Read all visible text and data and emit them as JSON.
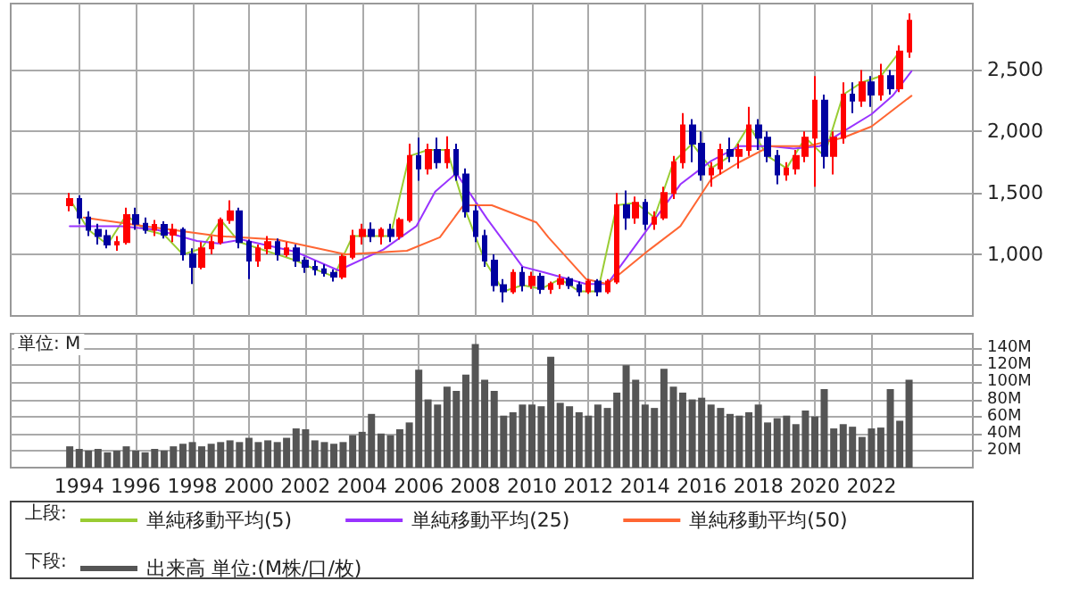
{
  "chart_data": [
    {
      "type": "candlestick",
      "x": [
        "1993-09",
        "1994-01",
        "1994-05",
        "1994-09",
        "1995-01",
        "1995-05",
        "1995-09",
        "1996-01",
        "1996-05",
        "1996-09",
        "1997-01",
        "1997-05",
        "1997-09",
        "1998-01",
        "1998-05",
        "1998-09",
        "1999-01",
        "1999-05",
        "1999-09",
        "2000-01",
        "2000-05",
        "2000-09",
        "2001-01",
        "2001-05",
        "2001-09",
        "2002-01",
        "2002-05",
        "2002-09",
        "2003-01",
        "2003-05",
        "2003-09",
        "2004-01",
        "2004-05",
        "2004-09",
        "2005-01",
        "2005-05",
        "2005-09",
        "2006-01",
        "2006-05",
        "2006-09",
        "2007-01",
        "2007-05",
        "2007-09",
        "2008-01",
        "2008-05",
        "2008-09",
        "2009-01",
        "2009-05",
        "2009-09",
        "2010-01",
        "2010-05",
        "2010-09",
        "2011-01",
        "2011-05",
        "2011-09",
        "2012-01",
        "2012-05",
        "2012-09",
        "2013-01",
        "2013-05",
        "2013-09",
        "2014-01",
        "2014-05",
        "2014-09",
        "2015-01",
        "2015-05",
        "2015-09",
        "2016-01",
        "2016-05",
        "2016-09",
        "2017-01",
        "2017-05",
        "2017-09",
        "2018-01",
        "2018-05",
        "2018-09",
        "2019-01",
        "2019-05",
        "2019-09",
        "2020-01",
        "2020-05",
        "2020-09",
        "2021-01",
        "2021-05",
        "2021-09",
        "2022-01",
        "2022-05",
        "2022-09",
        "2023-01",
        "2023-05"
      ],
      "ohlc": [
        [
          1400,
          1500,
          1350,
          1450
        ],
        [
          1450,
          1480,
          1250,
          1300
        ],
        [
          1300,
          1350,
          1150,
          1200
        ],
        [
          1200,
          1250,
          1080,
          1150
        ],
        [
          1150,
          1200,
          1050,
          1080
        ],
        [
          1080,
          1150,
          1030,
          1100
        ],
        [
          1100,
          1380,
          1080,
          1320
        ],
        [
          1320,
          1380,
          1200,
          1250
        ],
        [
          1250,
          1300,
          1170,
          1200
        ],
        [
          1200,
          1280,
          1150,
          1240
        ],
        [
          1240,
          1270,
          1130,
          1160
        ],
        [
          1160,
          1250,
          1100,
          1200
        ],
        [
          1200,
          1220,
          950,
          1000
        ],
        [
          1000,
          1050,
          760,
          900
        ],
        [
          900,
          1100,
          880,
          1050
        ],
        [
          1050,
          1150,
          1000,
          1100
        ],
        [
          1100,
          1300,
          1080,
          1280
        ],
        [
          1280,
          1440,
          1250,
          1350
        ],
        [
          1350,
          1380,
          1050,
          1100
        ],
        [
          1100,
          1120,
          800,
          950
        ],
        [
          950,
          1080,
          900,
          1050
        ],
        [
          1050,
          1150,
          1000,
          1100
        ],
        [
          1100,
          1130,
          950,
          1000
        ],
        [
          1000,
          1100,
          980,
          1050
        ],
        [
          1050,
          1080,
          900,
          950
        ],
        [
          950,
          980,
          850,
          900
        ],
        [
          900,
          950,
          830,
          880
        ],
        [
          880,
          920,
          820,
          850
        ],
        [
          850,
          880,
          780,
          820
        ],
        [
          820,
          1000,
          800,
          980
        ],
        [
          980,
          1200,
          960,
          1150
        ],
        [
          1150,
          1250,
          1080,
          1200
        ],
        [
          1200,
          1260,
          1100,
          1150
        ],
        [
          1150,
          1220,
          1080,
          1200
        ],
        [
          1200,
          1250,
          1100,
          1150
        ],
        [
          1150,
          1300,
          1120,
          1280
        ],
        [
          1280,
          1900,
          1260,
          1800
        ],
        [
          1800,
          1950,
          1600,
          1700
        ],
        [
          1700,
          1900,
          1650,
          1850
        ],
        [
          1850,
          1950,
          1700,
          1750
        ],
        [
          1750,
          1960,
          1700,
          1850
        ],
        [
          1850,
          1900,
          1600,
          1650
        ],
        [
          1650,
          1700,
          1300,
          1350
        ],
        [
          1350,
          1400,
          1100,
          1150
        ],
        [
          1150,
          1200,
          900,
          950
        ],
        [
          950,
          1000,
          700,
          750
        ],
        [
          750,
          800,
          610,
          700
        ],
        [
          700,
          880,
          680,
          850
        ],
        [
          850,
          900,
          700,
          750
        ],
        [
          750,
          860,
          720,
          820
        ],
        [
          820,
          850,
          680,
          720
        ],
        [
          720,
          780,
          680,
          760
        ],
        [
          760,
          840,
          720,
          800
        ],
        [
          800,
          820,
          720,
          750
        ],
        [
          750,
          780,
          660,
          700
        ],
        [
          700,
          800,
          680,
          780
        ],
        [
          780,
          800,
          660,
          700
        ],
        [
          700,
          800,
          680,
          780
        ],
        [
          780,
          1500,
          760,
          1400
        ],
        [
          1400,
          1520,
          1200,
          1300
        ],
        [
          1300,
          1470,
          1250,
          1420
        ],
        [
          1420,
          1450,
          1200,
          1250
        ],
        [
          1250,
          1350,
          1200,
          1300
        ],
        [
          1300,
          1550,
          1280,
          1500
        ],
        [
          1500,
          1800,
          1450,
          1750
        ],
        [
          1750,
          2150,
          1700,
          2050
        ],
        [
          2050,
          2100,
          1750,
          1900
        ],
        [
          1900,
          2000,
          1600,
          1650
        ],
        [
          1650,
          1750,
          1550,
          1700
        ],
        [
          1700,
          1900,
          1650,
          1850
        ],
        [
          1850,
          1950,
          1750,
          1800
        ],
        [
          1800,
          1900,
          1700,
          1850
        ],
        [
          1850,
          2200,
          1800,
          2050
        ],
        [
          2050,
          2100,
          1850,
          1950
        ],
        [
          1950,
          2000,
          1750,
          1800
        ],
        [
          1800,
          1850,
          1570,
          1650
        ],
        [
          1650,
          1750,
          1600,
          1700
        ],
        [
          1700,
          1850,
          1650,
          1800
        ],
        [
          1800,
          2000,
          1750,
          1950
        ],
        [
          1950,
          2450,
          1550,
          2250
        ],
        [
          2250,
          2300,
          1700,
          1800
        ],
        [
          1800,
          2000,
          1650,
          1950
        ],
        [
          1950,
          2400,
          1900,
          2300
        ],
        [
          2300,
          2400,
          2150,
          2250
        ],
        [
          2250,
          2500,
          2200,
          2400
        ],
        [
          2400,
          2450,
          2200,
          2300
        ],
        [
          2300,
          2550,
          2250,
          2450
        ],
        [
          2450,
          2500,
          2300,
          2350
        ],
        [
          2350,
          2700,
          2320,
          2650
        ],
        [
          2650,
          2960,
          2600,
          2900
        ]
      ],
      "colors": [
        "#ff0000",
        "#0000a0",
        "#0000a0",
        "#0000a0",
        "#0000a0",
        "#ff0000",
        "#ff0000",
        "#0000a0",
        "#0000a0",
        "#ff0000",
        "#0000a0",
        "#ff0000",
        "#0000a0",
        "#0000a0",
        "#ff0000",
        "#ff0000",
        "#ff0000",
        "#ff0000",
        "#0000a0",
        "#0000a0",
        "#ff0000",
        "#ff0000",
        "#0000a0",
        "#ff0000",
        "#0000a0",
        "#0000a0",
        "#0000a0",
        "#0000a0",
        "#0000a0",
        "#ff0000",
        "#ff0000",
        "#ff0000",
        "#0000a0",
        "#ff0000",
        "#0000a0",
        "#ff0000",
        "#ff0000",
        "#0000a0",
        "#ff0000",
        "#0000a0",
        "#ff0000",
        "#0000a0",
        "#0000a0",
        "#0000a0",
        "#0000a0",
        "#0000a0",
        "#0000a0",
        "#ff0000",
        "#0000a0",
        "#ff0000",
        "#0000a0",
        "#ff0000",
        "#ff0000",
        "#0000a0",
        "#0000a0",
        "#ff0000",
        "#0000a0",
        "#ff0000",
        "#ff0000",
        "#0000a0",
        "#ff0000",
        "#0000a0",
        "#ff0000",
        "#ff0000",
        "#ff0000",
        "#ff0000",
        "#0000a0",
        "#0000a0",
        "#ff0000",
        "#ff0000",
        "#0000a0",
        "#ff0000",
        "#ff0000",
        "#0000a0",
        "#0000a0",
        "#0000a0",
        "#ff0000",
        "#ff0000",
        "#ff0000",
        "#ff0000",
        "#0000a0",
        "#ff0000",
        "#ff0000",
        "#0000a0",
        "#ff0000",
        "#0000a0",
        "#ff0000",
        "#0000a0",
        "#ff0000",
        "#ff0000"
      ],
      "series": [
        {
          "type": "line",
          "name": "単純移動平均(5)",
          "color": "#99cc33",
          "x": [
            "1993-09",
            "1994-05",
            "1995-01",
            "1995-09",
            "1996-05",
            "1997-01",
            "1997-09",
            "1998-05",
            "1999-01",
            "1999-09",
            "2000-05",
            "2001-01",
            "2001-09",
            "2002-05",
            "2003-01",
            "2003-09",
            "2004-05",
            "2005-01",
            "2005-09",
            "2006-05",
            "2007-01",
            "2007-09",
            "2008-05",
            "2009-01",
            "2009-09",
            "2010-05",
            "2011-01",
            "2011-09",
            "2012-05",
            "2013-01",
            "2013-09",
            "2014-05",
            "2015-01",
            "2015-09",
            "2016-05",
            "2017-01",
            "2017-09",
            "2018-05",
            "2019-01",
            "2019-09",
            "2020-05",
            "2021-01",
            "2021-09",
            "2022-05",
            "2023-01"
          ],
          "values": [
            1450,
            1200,
            1080,
            1320,
            1200,
            1160,
            1000,
            1050,
            1280,
            1100,
            1050,
            1000,
            950,
            880,
            820,
            1150,
            1150,
            1150,
            1800,
            1850,
            1850,
            1350,
            950,
            700,
            750,
            720,
            800,
            700,
            700,
            1400,
            1420,
            1300,
            1750,
            1900,
            1700,
            1800,
            2050,
            1800,
            1700,
            1950,
            1800,
            2300,
            2400,
            2450,
            2650
          ]
        },
        {
          "type": "line",
          "name": "単純移動平均(25)",
          "color": "#9933ff",
          "x": [
            "1993-09",
            "1995-07",
            "1996-10",
            "1998-03",
            "1998-12",
            "1999-10",
            "2001-09",
            "2003-03",
            "2004-10",
            "2005-12",
            "2006-08",
            "2007-05",
            "2008-06",
            "2009-09",
            "2010-07",
            "2011-12",
            "2012-09",
            "2014-03",
            "2015-04",
            "2016-05",
            "2017-05",
            "2018-06",
            "2019-04",
            "2020-03",
            "2021-01",
            "2022-01",
            "2022-10",
            "2023-06"
          ],
          "values": [
            1230,
            1230,
            1200,
            1110,
            1090,
            1120,
            1020,
            870,
            1040,
            1230,
            1510,
            1660,
            1290,
            900,
            850,
            760,
            760,
            1230,
            1570,
            1760,
            1880,
            1880,
            1860,
            1880,
            2000,
            2140,
            2290,
            2490
          ]
        },
        {
          "type": "line",
          "name": "単純移動平均(50)",
          "color": "#ff6633",
          "x": [
            "1994-03",
            "1996-05",
            "1998-12",
            "2001-01",
            "2003-06",
            "2005-08",
            "2006-10",
            "2007-08",
            "2008-08",
            "2010-03",
            "2010-08",
            "2011-12",
            "2012-09",
            "2014-03",
            "2015-04",
            "2016-05",
            "2017-05",
            "2018-06",
            "2019-10",
            "2021-01",
            "2022-01",
            "2023-06"
          ],
          "values": [
            1300,
            1230,
            1150,
            1120,
            1000,
            1030,
            1140,
            1400,
            1400,
            1260,
            1140,
            800,
            760,
            1040,
            1230,
            1610,
            1750,
            1880,
            1880,
            1950,
            2040,
            2290
          ]
        }
      ],
      "xlim": [
        "1991-08",
        "2025-08"
      ],
      "xticks": [
        "1994",
        "1996",
        "1998",
        "2000",
        "2002",
        "2004",
        "2006",
        "2008",
        "2010",
        "2012",
        "2014",
        "2016",
        "2018",
        "2020",
        "2022"
      ],
      "ylim": [
        500,
        3040
      ],
      "yticks": [
        {
          "value": 1000,
          "label": "1,000"
        },
        {
          "value": 1500,
          "label": "1,500"
        },
        {
          "value": 2000,
          "label": "2,000"
        },
        {
          "value": 2500,
          "label": "2,500"
        }
      ],
      "grid": true,
      "legend": "bottom",
      "tick_labels": "y",
      "marker": "none",
      "line_style": "solid",
      "annotations": [
        "上段:"
      ]
    },
    {
      "type": "bar",
      "x": [
        "1993-09",
        "1994-01",
        "1994-05",
        "1994-09",
        "1995-01",
        "1995-05",
        "1995-09",
        "1996-01",
        "1996-05",
        "1996-09",
        "1997-01",
        "1997-05",
        "1997-09",
        "1998-01",
        "1998-05",
        "1998-09",
        "1999-01",
        "1999-05",
        "1999-09",
        "2000-01",
        "2000-05",
        "2000-09",
        "2001-01",
        "2001-05",
        "2001-09",
        "2002-01",
        "2002-05",
        "2002-09",
        "2003-01",
        "2003-05",
        "2003-09",
        "2004-01",
        "2004-05",
        "2004-09",
        "2005-01",
        "2005-05",
        "2005-09",
        "2006-01",
        "2006-05",
        "2006-09",
        "2007-01",
        "2007-05",
        "2007-09",
        "2008-01",
        "2008-05",
        "2008-09",
        "2009-01",
        "2009-05",
        "2009-09",
        "2010-01",
        "2010-05",
        "2010-09",
        "2011-01",
        "2011-05",
        "2011-09",
        "2012-01",
        "2012-05",
        "2012-09",
        "2013-01",
        "2013-05",
        "2013-09",
        "2014-01",
        "2014-05",
        "2014-09",
        "2015-01",
        "2015-05",
        "2015-09",
        "2016-01",
        "2016-05",
        "2016-09",
        "2017-01",
        "2017-05",
        "2017-09",
        "2018-01",
        "2018-05",
        "2018-09",
        "2019-01",
        "2019-05",
        "2019-09",
        "2020-01",
        "2020-05",
        "2020-09",
        "2021-01",
        "2021-05",
        "2021-09",
        "2022-01",
        "2022-05",
        "2022-09",
        "2023-01",
        "2023-05"
      ],
      "series": [
        {
          "name": "出来高 単位:(M株/口/枚)",
          "color": "#555555",
          "values": [
            25,
            22,
            20,
            22,
            18,
            20,
            25,
            20,
            18,
            22,
            20,
            25,
            28,
            30,
            25,
            28,
            30,
            32,
            30,
            35,
            30,
            32,
            30,
            35,
            46,
            45,
            32,
            30,
            28,
            30,
            38,
            42,
            63,
            40,
            38,
            45,
            53,
            115,
            80,
            74,
            95,
            90,
            109,
            145,
            103,
            90,
            61,
            65,
            74,
            74,
            72,
            130,
            76,
            72,
            65,
            61,
            74,
            70,
            88,
            120,
            103,
            74,
            70,
            116,
            95,
            88,
            80,
            82,
            74,
            70,
            63,
            61,
            65,
            74,
            53,
            58,
            61,
            51,
            67,
            60,
            92,
            46,
            51,
            48,
            36,
            46,
            47,
            92,
            55,
            103
          ]
        }
      ],
      "xlim": [
        "1991-08",
        "2025-08"
      ],
      "xticks": [
        "1994",
        "1996",
        "1998",
        "2000",
        "2002",
        "2004",
        "2006",
        "2008",
        "2010",
        "2012",
        "2014",
        "2016",
        "2018",
        "2020",
        "2022"
      ],
      "ylim": [
        0,
        157
      ],
      "yticks": [
        {
          "value": 20,
          "label": "20M"
        },
        {
          "value": 40,
          "label": "40M"
        },
        {
          "value": 60,
          "label": "60M"
        },
        {
          "value": 80,
          "label": "80M"
        },
        {
          "value": 100,
          "label": "100M"
        },
        {
          "value": 120,
          "label": "120M"
        },
        {
          "value": 140,
          "label": "140M"
        }
      ],
      "grid": true,
      "legend": "bottom",
      "annotations": [
        "単位: M",
        "下段:"
      ]
    }
  ]
}
